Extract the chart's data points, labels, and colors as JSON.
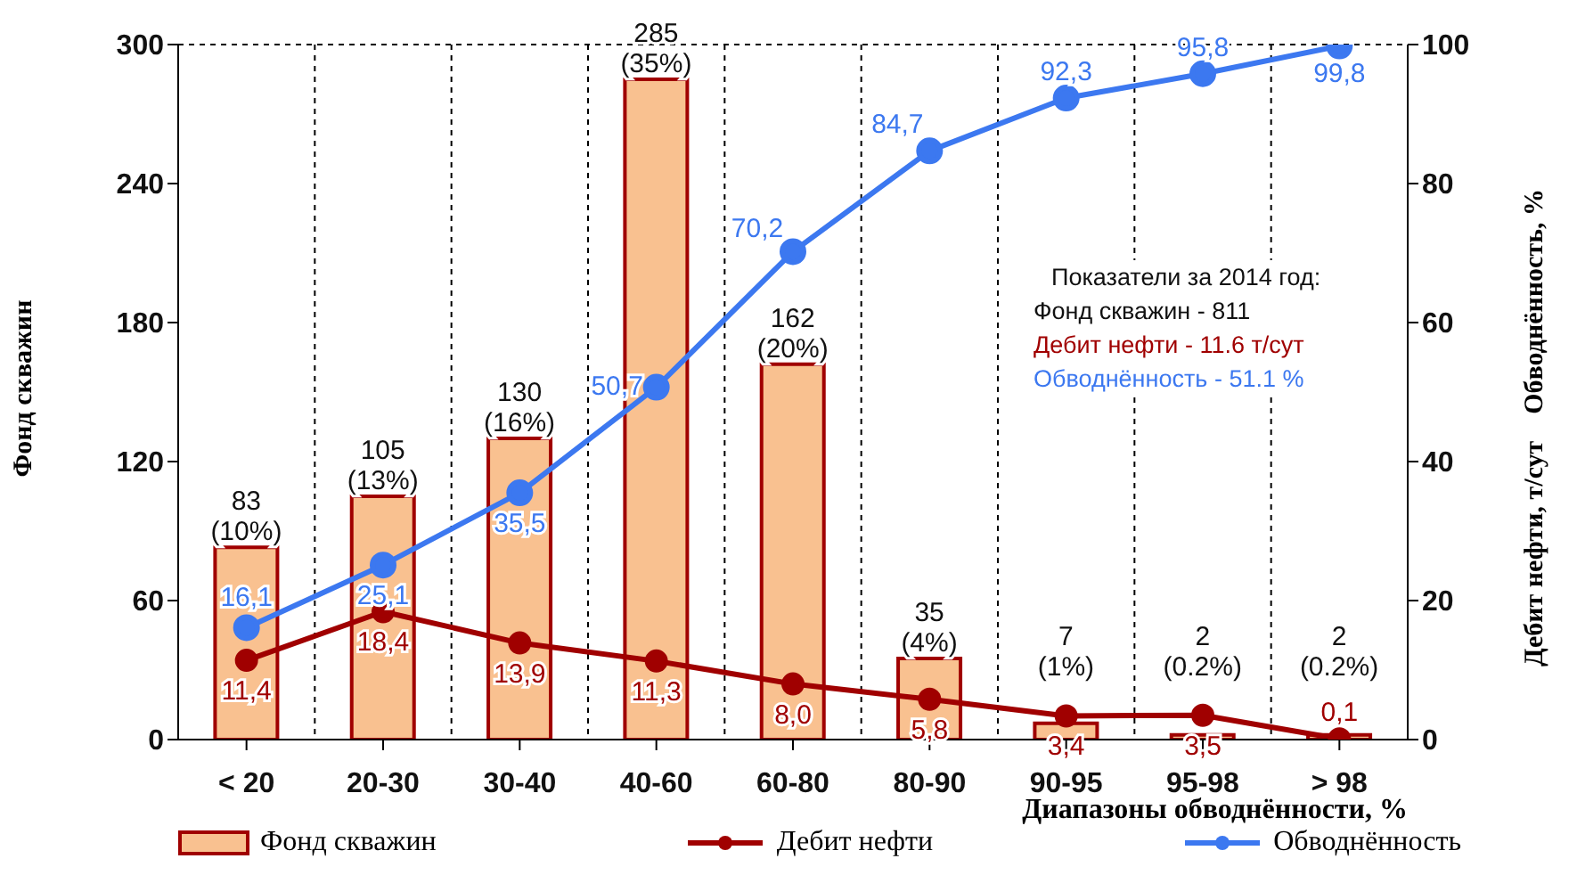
{
  "chart_data": {
    "type": "bar",
    "xlabel": "Диапазоны обводнённости, %",
    "ylabel": "Фонд скважин",
    "y2label": "Дебит нефти, т/сут    Обводнённость, %",
    "categories": [
      "< 20",
      "20-30",
      "30-40",
      "40-60",
      "60-80",
      "80-90",
      "90-95",
      "95-98",
      "> 98"
    ],
    "series": [
      {
        "name": "Фонд скважин",
        "type": "bar",
        "color": "#f9c190",
        "values": [
          83,
          105,
          130,
          285,
          162,
          35,
          7,
          2,
          2
        ],
        "value_labels": [
          "83\n(10%)",
          "105\n(13%)",
          "130\n(16%)",
          "285\n(35%)",
          "162\n(20%)",
          "35\n(4%)",
          "7\n(1%)",
          "2\n(0.2%)",
          "2\n(0.2%)"
        ]
      },
      {
        "name": "Дебит нефти",
        "type": "line",
        "axis": "y2",
        "color": "#a00000",
        "values": [
          11.4,
          18.4,
          13.9,
          11.3,
          8.0,
          5.8,
          3.4,
          3.5,
          0.1
        ],
        "value_labels": [
          "11,4",
          "18,4",
          "13,9",
          "11,3",
          "8,0",
          "5,8",
          "3,4",
          "3,5",
          "0,1"
        ]
      },
      {
        "name": "Обводнённость",
        "type": "line",
        "axis": "y2",
        "color": "#3c78f0",
        "values": [
          16.1,
          25.1,
          35.5,
          50.7,
          70.2,
          84.7,
          92.3,
          95.8,
          99.8
        ],
        "value_labels": [
          "16,1",
          "25,1",
          "35,5",
          "50,7",
          "70,2",
          "84,7",
          "92,3",
          "95,8",
          "99,8"
        ]
      }
    ],
    "ylim": [
      0,
      300
    ],
    "yticks": [
      0,
      60,
      120,
      180,
      240,
      300
    ],
    "y2lim": [
      0,
      100
    ],
    "y2ticks": [
      0,
      20,
      40,
      60,
      80,
      100
    ],
    "grid": true,
    "legend": "bottom",
    "marker": "circle",
    "annotations": [
      "Показатели за 2014 год:",
      "Фонд скважин - 811",
      "Дебит нефти - 11.6 т/сут",
      "Обводнённость - 51.1 %"
    ]
  }
}
